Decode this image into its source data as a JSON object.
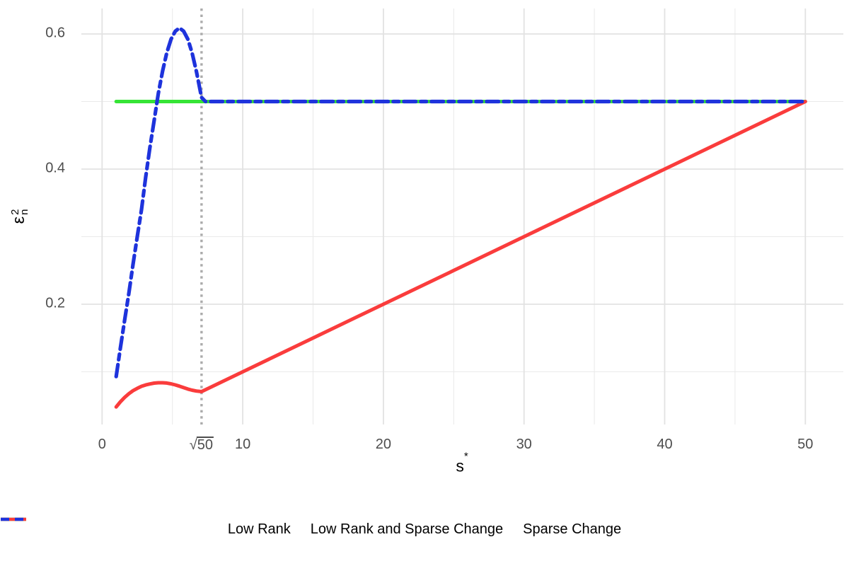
{
  "chart_data": {
    "type": "line",
    "title": "",
    "xlabel": {
      "base": "s",
      "sup": "*"
    },
    "ylabel": {
      "base": "ε",
      "sup": "2",
      "sub": "n"
    },
    "xlim": [
      -1.45,
      52.7
    ],
    "ylim": [
      0.022,
      0.638
    ],
    "grid": "on",
    "legend_position": "bottom",
    "x_axis": {
      "ticks": [
        {
          "value": 0,
          "label": "0"
        },
        {
          "value": 7.0711,
          "sqrt": true,
          "radicand": "50"
        },
        {
          "value": 10,
          "label": "10"
        },
        {
          "value": 20,
          "label": "20"
        },
        {
          "value": 30,
          "label": "30"
        },
        {
          "value": 40,
          "label": "40"
        },
        {
          "value": 50,
          "label": "50"
        }
      ],
      "major_gridlines": [
        0,
        10,
        20,
        30,
        40,
        50
      ],
      "minor_gridlines": [
        5,
        15,
        25,
        35,
        45
      ]
    },
    "y_axis": {
      "ticks": [
        {
          "value": 0.2,
          "label": "0.2"
        },
        {
          "value": 0.4,
          "label": "0.4"
        },
        {
          "value": 0.6,
          "label": "0.6"
        }
      ],
      "major_gridlines": [
        0.2,
        0.4,
        0.6
      ],
      "minor_gridlines": [
        0.1,
        0.3,
        0.5
      ]
    },
    "vline": {
      "x": 7.0711,
      "linetype": "dotted",
      "color": "#ababab",
      "width": 3.4
    },
    "series": [
      {
        "name": "Low Rank",
        "color": "#36e436",
        "linetype": "solid",
        "width": 5,
        "points": [
          [
            1,
            0.5
          ],
          [
            50,
            0.5
          ]
        ]
      },
      {
        "name": "Low Rank and Sparse Change",
        "color": "#fa3c3c",
        "linetype": "solid",
        "width": 5,
        "points": [
          [
            1,
            0.048
          ],
          [
            1.3,
            0.0555
          ],
          [
            1.6,
            0.062
          ],
          [
            1.9,
            0.0675
          ],
          [
            2.2,
            0.072
          ],
          [
            2.5,
            0.0755
          ],
          [
            2.8,
            0.0785
          ],
          [
            3.1,
            0.0805
          ],
          [
            3.4,
            0.082
          ],
          [
            3.7,
            0.0832
          ],
          [
            4,
            0.0838
          ],
          [
            4.3,
            0.0838
          ],
          [
            4.6,
            0.0833
          ],
          [
            4.9,
            0.0822
          ],
          [
            5.2,
            0.0806
          ],
          [
            5.5,
            0.0787
          ],
          [
            5.8,
            0.0765
          ],
          [
            6.1,
            0.0745
          ],
          [
            6.4,
            0.0728
          ],
          [
            6.7,
            0.0715
          ],
          [
            7.0711,
            0.0707
          ],
          [
            10,
            0.1
          ],
          [
            15,
            0.15
          ],
          [
            20,
            0.2
          ],
          [
            25,
            0.25
          ],
          [
            30,
            0.3
          ],
          [
            35,
            0.35
          ],
          [
            40,
            0.4
          ],
          [
            45,
            0.45
          ],
          [
            50,
            0.5
          ]
        ]
      },
      {
        "name": "Sparse Change",
        "color": "#1e33dc",
        "linetype": "twodash",
        "width": 5.2,
        "points": [
          [
            1,
            0.093
          ],
          [
            1.3,
            0.135
          ],
          [
            1.6,
            0.176
          ],
          [
            1.9,
            0.216
          ],
          [
            2.2,
            0.259
          ],
          [
            2.5,
            0.3
          ],
          [
            2.8,
            0.34
          ],
          [
            3.1,
            0.388
          ],
          [
            3.4,
            0.432
          ],
          [
            3.7,
            0.472
          ],
          [
            4,
            0.512
          ],
          [
            4.3,
            0.545
          ],
          [
            4.6,
            0.572
          ],
          [
            4.9,
            0.592
          ],
          [
            5.2,
            0.604
          ],
          [
            5.5,
            0.609
          ],
          [
            5.8,
            0.604
          ],
          [
            6.1,
            0.592
          ],
          [
            6.4,
            0.572
          ],
          [
            6.7,
            0.545
          ],
          [
            7.0711,
            0.506
          ],
          [
            7.35,
            0.5
          ],
          [
            10,
            0.5
          ],
          [
            50,
            0.5
          ]
        ]
      }
    ],
    "colors": {
      "grid_major": "#e2e2e2",
      "grid_minor": "#eaeaea",
      "tick_text": "#4d4d4d",
      "axis_title_text": "#000000"
    }
  },
  "legend": {
    "items": [
      {
        "label": "Low Rank",
        "color": "#36e436",
        "linetype": "solid"
      },
      {
        "label": "Low Rank and Sparse Change",
        "color": "#fa3c3c",
        "linetype": "solid"
      },
      {
        "label": "Sparse Change",
        "color": "#1e33dc",
        "linetype": "dashed"
      }
    ]
  }
}
